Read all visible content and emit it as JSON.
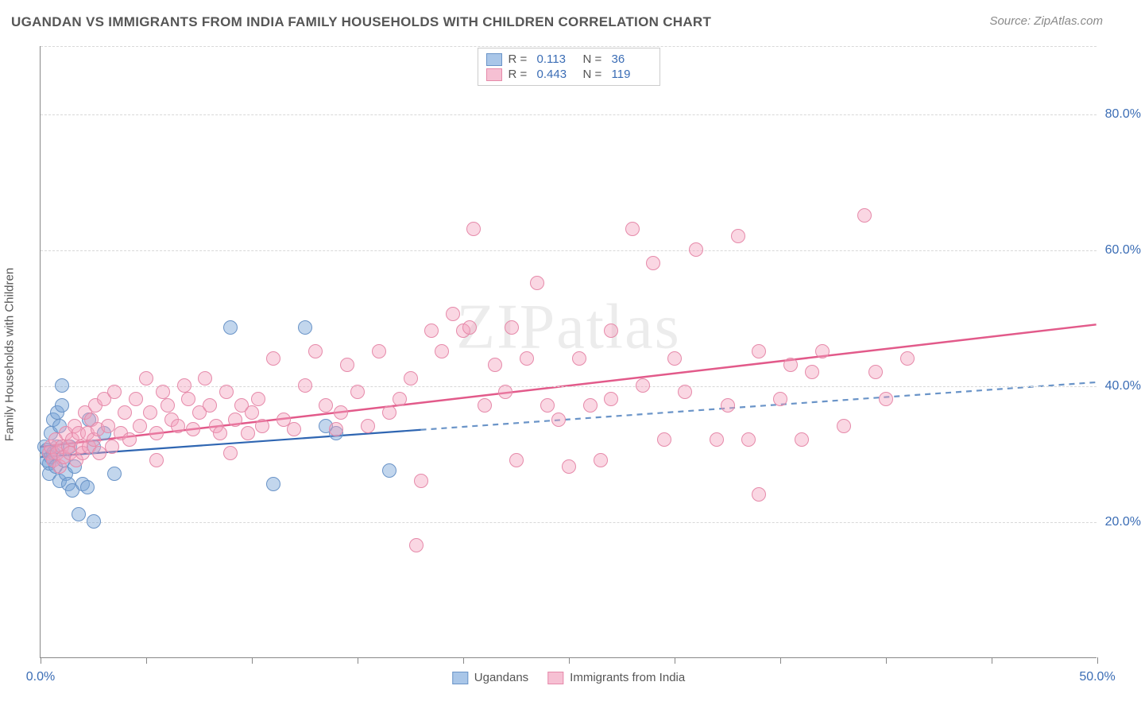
{
  "title": "UGANDAN VS IMMIGRANTS FROM INDIA FAMILY HOUSEHOLDS WITH CHILDREN CORRELATION CHART",
  "source": "Source: ZipAtlas.com",
  "watermark": "ZIPatlas",
  "ylabel": "Family Households with Children",
  "chart": {
    "type": "scatter",
    "xlim": [
      0,
      50
    ],
    "ylim": [
      0,
      90
    ],
    "xtick_positions": [
      0,
      5,
      10,
      15,
      20,
      25,
      30,
      35,
      40,
      45,
      50
    ],
    "xtick_labels_shown": {
      "0": "0.0%",
      "50": "50.0%"
    },
    "ytick_positions": [
      20,
      40,
      60,
      80
    ],
    "ytick_labels": [
      "20.0%",
      "40.0%",
      "60.0%",
      "80.0%"
    ],
    "grid_color": "#d8d8d8",
    "axis_color": "#888888",
    "background_color": "#ffffff",
    "tick_label_color": "#3b6db5",
    "point_radius": 9,
    "series": [
      {
        "name": "Ugandans",
        "fill": "rgba(120,165,216,0.45)",
        "stroke": "#6a94c8",
        "swatch_fill": "#a9c6e8",
        "swatch_border": "#6a94c8",
        "r_value": "0.113",
        "n_value": "36",
        "trend": {
          "x1": 0,
          "y1": 29.5,
          "x2": 18,
          "y2": 33.5,
          "x3": 50,
          "y3": 40.5,
          "solid_color": "#2f66b2",
          "dash_color": "#6a94c8",
          "width": 2.2
        },
        "points": [
          [
            0.2,
            31
          ],
          [
            0.3,
            29
          ],
          [
            0.3,
            30.5
          ],
          [
            0.4,
            27
          ],
          [
            0.4,
            28.5
          ],
          [
            0.5,
            29.5
          ],
          [
            0.5,
            33
          ],
          [
            0.6,
            30
          ],
          [
            0.6,
            35
          ],
          [
            0.7,
            28
          ],
          [
            0.8,
            31
          ],
          [
            0.8,
            36
          ],
          [
            0.9,
            26
          ],
          [
            0.9,
            34
          ],
          [
            1.0,
            37
          ],
          [
            1.0,
            40
          ],
          [
            1.1,
            29
          ],
          [
            1.2,
            27
          ],
          [
            1.3,
            25.5
          ],
          [
            1.4,
            31
          ],
          [
            1.5,
            24.5
          ],
          [
            1.6,
            28
          ],
          [
            1.8,
            21
          ],
          [
            2.0,
            25.5
          ],
          [
            2.2,
            25
          ],
          [
            2.3,
            35
          ],
          [
            2.5,
            31
          ],
          [
            2.5,
            20
          ],
          [
            3.0,
            33
          ],
          [
            3.5,
            27
          ],
          [
            9.0,
            48.5
          ],
          [
            11.0,
            25.5
          ],
          [
            12.5,
            48.5
          ],
          [
            13.5,
            34
          ],
          [
            14.0,
            33
          ],
          [
            16.5,
            27.5
          ]
        ]
      },
      {
        "name": "Immigrants from India",
        "fill": "rgba(244,160,188,0.42)",
        "stroke": "#e68aaa",
        "swatch_fill": "#f6c0d3",
        "swatch_border": "#e68aaa",
        "r_value": "0.443",
        "n_value": "119",
        "trend": {
          "x1": 0,
          "y1": 31,
          "x2": 50,
          "y2": 49,
          "solid_color": "#e25a8a",
          "width": 2.5
        },
        "points": [
          [
            0.4,
            30
          ],
          [
            0.5,
            31
          ],
          [
            0.6,
            29
          ],
          [
            0.7,
            32
          ],
          [
            0.8,
            30
          ],
          [
            0.9,
            28
          ],
          [
            1.0,
            31
          ],
          [
            1.1,
            29.5
          ],
          [
            1.2,
            33
          ],
          [
            1.3,
            31
          ],
          [
            1.4,
            30
          ],
          [
            1.5,
            32
          ],
          [
            1.6,
            34
          ],
          [
            1.7,
            29
          ],
          [
            1.8,
            33
          ],
          [
            1.9,
            31
          ],
          [
            2.0,
            30
          ],
          [
            2.1,
            36
          ],
          [
            2.2,
            33
          ],
          [
            2.3,
            31
          ],
          [
            2.4,
            35
          ],
          [
            2.5,
            32
          ],
          [
            2.6,
            37
          ],
          [
            2.7,
            33.5
          ],
          [
            2.8,
            30
          ],
          [
            3.0,
            38
          ],
          [
            3.2,
            34
          ],
          [
            3.4,
            31
          ],
          [
            3.5,
            39
          ],
          [
            3.8,
            33
          ],
          [
            4.0,
            36
          ],
          [
            4.2,
            32
          ],
          [
            4.5,
            38
          ],
          [
            4.7,
            34
          ],
          [
            5.0,
            41
          ],
          [
            5.2,
            36
          ],
          [
            5.5,
            33
          ],
          [
            5.8,
            39
          ],
          [
            6.0,
            37
          ],
          [
            6.2,
            35
          ],
          [
            6.5,
            34
          ],
          [
            6.8,
            40
          ],
          [
            7.0,
            38
          ],
          [
            7.2,
            33.5
          ],
          [
            7.5,
            36
          ],
          [
            7.8,
            41
          ],
          [
            8.0,
            37
          ],
          [
            8.3,
            34
          ],
          [
            8.5,
            33
          ],
          [
            8.8,
            39
          ],
          [
            9.0,
            30
          ],
          [
            9.2,
            35
          ],
          [
            9.5,
            37
          ],
          [
            9.8,
            33
          ],
          [
            10.0,
            36
          ],
          [
            10.3,
            38
          ],
          [
            10.5,
            34
          ],
          [
            11.0,
            44
          ],
          [
            11.5,
            35
          ],
          [
            12.0,
            33.5
          ],
          [
            12.5,
            40
          ],
          [
            13.0,
            45
          ],
          [
            13.5,
            37
          ],
          [
            14.0,
            33.5
          ],
          [
            14.2,
            36
          ],
          [
            14.5,
            43
          ],
          [
            15.0,
            39
          ],
          [
            15.5,
            34
          ],
          [
            16.0,
            45
          ],
          [
            16.5,
            36
          ],
          [
            17.0,
            38
          ],
          [
            17.5,
            41
          ],
          [
            17.8,
            16.5
          ],
          [
            18.0,
            26
          ],
          [
            18.5,
            48
          ],
          [
            19.0,
            45
          ],
          [
            19.5,
            50.5
          ],
          [
            20.0,
            48
          ],
          [
            20.3,
            48.5
          ],
          [
            20.5,
            63
          ],
          [
            21.0,
            37
          ],
          [
            21.5,
            43
          ],
          [
            22.0,
            39
          ],
          [
            22.5,
            29
          ],
          [
            23.0,
            44
          ],
          [
            24.0,
            37
          ],
          [
            24.5,
            35
          ],
          [
            25.0,
            28
          ],
          [
            25.5,
            44
          ],
          [
            26.0,
            37
          ],
          [
            26.5,
            29
          ],
          [
            27.0,
            38
          ],
          [
            28.0,
            63
          ],
          [
            28.5,
            40
          ],
          [
            29.0,
            58
          ],
          [
            29.5,
            32
          ],
          [
            30.0,
            44
          ],
          [
            30.5,
            39
          ],
          [
            31.0,
            60
          ],
          [
            32.0,
            32
          ],
          [
            32.5,
            37
          ],
          [
            33.0,
            62
          ],
          [
            33.5,
            32
          ],
          [
            34.0,
            45
          ],
          [
            35.0,
            38
          ],
          [
            35.5,
            43
          ],
          [
            36.0,
            32
          ],
          [
            36.5,
            42
          ],
          [
            37.0,
            45
          ],
          [
            38.0,
            34
          ],
          [
            39.0,
            65
          ],
          [
            39.5,
            42
          ],
          [
            40.0,
            38
          ],
          [
            41.0,
            44
          ],
          [
            34.0,
            24
          ],
          [
            27.0,
            48
          ],
          [
            23.5,
            55
          ],
          [
            22.3,
            48.5
          ],
          [
            5.5,
            29
          ]
        ]
      }
    ]
  },
  "bottom_legend": [
    {
      "label": "Ugandans",
      "fill": "#a9c6e8",
      "border": "#6a94c8"
    },
    {
      "label": "Immigrants from India",
      "fill": "#f6c0d3",
      "border": "#e68aaa"
    }
  ]
}
